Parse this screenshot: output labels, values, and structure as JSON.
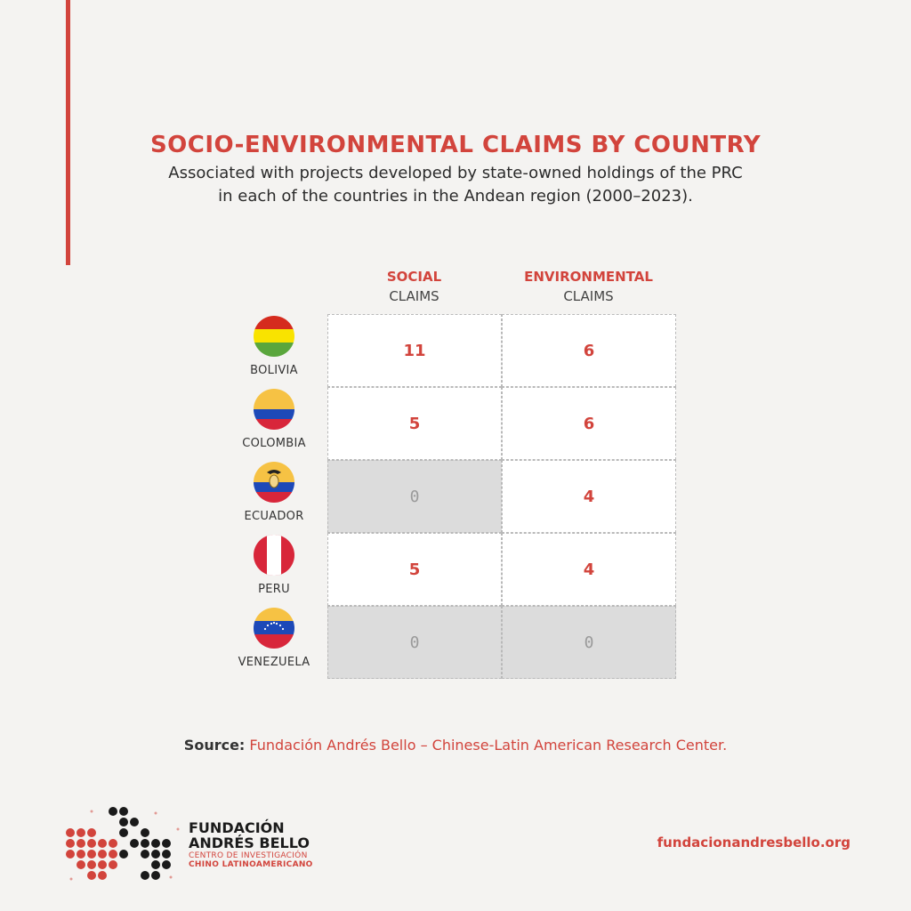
{
  "title": "SOCIO-ENVIRONMENTAL CLAIMS BY COUNTRY",
  "subtitle_line1": "Associated with projects developed by state-owned holdings of the PRC",
  "subtitle_line2": "in each of the countries in the Andean region (2000–2023).",
  "columns": [
    {
      "top": "SOCIAL",
      "bottom": "CLAIMS"
    },
    {
      "top": "ENVIRONMENTAL",
      "bottom": "CLAIMS"
    }
  ],
  "colors": {
    "accent": "#d2443c",
    "cell_bg": "#ffffff",
    "zero_cell_bg": "#dcdcdc",
    "background": "#f4f3f1"
  },
  "chart_data": {
    "type": "table",
    "title": "SOCIO-ENVIRONMENTAL CLAIMS BY COUNTRY",
    "columns": [
      "SOCIAL CLAIMS",
      "ENVIRONMENTAL CLAIMS"
    ],
    "rows": [
      {
        "country": "BOLIVIA",
        "flag": "bolivia-flag-icon",
        "values": [
          11,
          6
        ]
      },
      {
        "country": "COLOMBIA",
        "flag": "colombia-flag-icon",
        "values": [
          5,
          6
        ]
      },
      {
        "country": "ECUADOR",
        "flag": "ecuador-flag-icon",
        "values": [
          0,
          4
        ]
      },
      {
        "country": "PERU",
        "flag": "peru-flag-icon",
        "values": [
          5,
          4
        ]
      },
      {
        "country": "VENEZUELA",
        "flag": "venezuela-flag-icon",
        "values": [
          0,
          0
        ]
      }
    ]
  },
  "source": {
    "label": "Source:",
    "text": "Fundación Andrés Bello – Chinese-Latin American Research Center."
  },
  "footer": {
    "org_line1": "FUNDACIÓN",
    "org_line2": "ANDRÉS BELLO",
    "org_sub1": "CENTRO DE INVESTIGACIÓN",
    "org_sub2": "CHINO LATINOAMERICANO",
    "website": "fundacionandresbello.org"
  }
}
